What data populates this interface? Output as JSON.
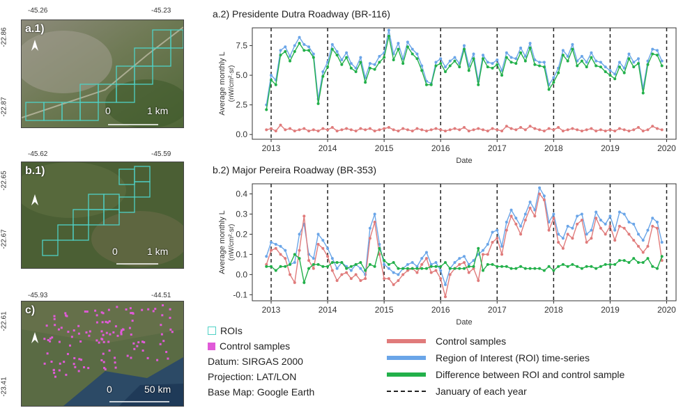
{
  "maps": {
    "a1": {
      "tag": "a.1)",
      "x_ticks": [
        "-45.26",
        "-45.23"
      ],
      "y_ticks": [
        "-22.86",
        "-22.87"
      ],
      "scale_zero": "0",
      "scale_label": "1 km",
      "north": "N"
    },
    "b1": {
      "tag": "b.1)",
      "x_ticks": [
        "-45.62",
        "-45.59"
      ],
      "y_ticks": [
        "-22.65",
        "-22.67"
      ],
      "scale_zero": "0",
      "scale_label": "1 km",
      "north": "N"
    },
    "c": {
      "tag": "c)",
      "x_ticks": [
        "-45.93",
        "-44.51"
      ],
      "y_ticks": [
        "-22.61",
        "-23.41"
      ],
      "scale_zero": "0",
      "scale_label": "50 km",
      "north": "N"
    }
  },
  "map_legend": {
    "roi_label": "ROIs",
    "control_label": "Control samples",
    "datum": "Datum: SIRGAS 2000",
    "projection": "Projection: LAT/LON",
    "basemap": "Base Map: Google Earth",
    "roi_color": "#4fd1c5",
    "control_color": "#e05ad8"
  },
  "series_legend": {
    "control": "Control samples",
    "roi": "Region of Interest (ROI) time-series",
    "difference": "Difference between ROI and control sample",
    "january": "January of each year"
  },
  "colors": {
    "control": "#e07b7b",
    "roi": "#6aa5e8",
    "difference": "#22b04a"
  },
  "chart_data": [
    {
      "type": "line",
      "title": "a.2) Presidente Dutra Roadway (BR-116)",
      "xlabel": "Date",
      "ylabel": "Average monthly L",
      "ylabel_unit": "(nW/cm²·sr)",
      "x_ticks": [
        "2013",
        "2014",
        "2015",
        "2016",
        "2017",
        "2018",
        "2019",
        "2020"
      ],
      "y_ticks": [
        "0.0",
        "2.5",
        "5.0",
        "7.5"
      ],
      "ylim": [
        -0.4,
        9.0
      ],
      "xlim": [
        "2012-09",
        "2020-03"
      ],
      "start": "2012-12",
      "january_lines": [
        "2013-01",
        "2014-01",
        "2015-01",
        "2016-01",
        "2017-01",
        "2018-01",
        "2019-01",
        "2020-01"
      ],
      "series": [
        {
          "name": "Region of Interest (ROI) time-series",
          "key": "roi",
          "values": [
            2.5,
            5.0,
            4.6,
            7.1,
            7.4,
            6.6,
            7.5,
            8.2,
            7.6,
            7.4,
            6.8,
            3.0,
            5.3,
            6.1,
            7.6,
            7.0,
            6.3,
            6.9,
            6.0,
            5.6,
            6.5,
            4.8,
            6.0,
            5.9,
            6.6,
            6.9,
            8.8,
            6.8,
            7.7,
            6.4,
            7.8,
            7.2,
            6.8,
            5.8,
            4.5,
            4.3,
            6.1,
            6.4,
            5.7,
            6.2,
            6.5,
            6.0,
            7.5,
            5.8,
            6.8,
            4.5,
            6.7,
            6.1,
            6.0,
            6.3,
            5.4,
            6.9,
            6.5,
            6.4,
            7.3,
            6.6,
            7.7,
            6.3,
            6.1,
            6.1,
            4.2,
            4.8,
            5.6,
            7.1,
            6.6,
            7.6,
            6.2,
            6.6,
            6.1,
            6.9,
            6.2,
            6.1,
            5.7,
            5.4,
            5.1,
            6.1,
            5.6,
            6.8,
            6.1,
            6.4,
            3.9,
            6.2,
            7.2,
            7.1,
            6.2
          ]
        },
        {
          "name": "Difference between ROI and control sample",
          "key": "difference",
          "values": [
            2.1,
            4.6,
            4.2,
            6.7,
            7.0,
            6.2,
            7.0,
            7.7,
            7.1,
            7.1,
            6.5,
            2.6,
            4.9,
            5.7,
            7.2,
            6.7,
            5.9,
            6.5,
            5.6,
            5.3,
            6.1,
            4.4,
            5.6,
            5.5,
            6.1,
            6.5,
            8.3,
            6.3,
            7.2,
            6.0,
            7.4,
            6.8,
            6.4,
            5.4,
            4.2,
            4.2,
            5.8,
            6.0,
            5.3,
            5.8,
            6.2,
            5.7,
            7.2,
            5.4,
            6.4,
            4.2,
            6.4,
            5.7,
            5.6,
            5.9,
            5.0,
            6.5,
            6.1,
            6.0,
            6.9,
            6.2,
            7.3,
            5.9,
            5.8,
            5.7,
            3.8,
            4.4,
            5.2,
            6.7,
            6.2,
            7.2,
            5.8,
            6.2,
            5.7,
            6.5,
            5.8,
            5.7,
            5.3,
            5.0,
            4.7,
            5.7,
            5.2,
            6.4,
            5.7,
            6.0,
            3.5,
            5.9,
            6.8,
            6.7,
            5.8
          ]
        },
        {
          "name": "Control samples",
          "key": "control",
          "values": [
            0.4,
            0.5,
            0.3,
            0.8,
            0.4,
            0.5,
            0.3,
            0.4,
            0.5,
            0.3,
            0.4,
            0.3,
            0.5,
            0.4,
            0.6,
            0.3,
            0.4,
            0.5,
            0.4,
            0.3,
            0.5,
            0.4,
            0.5,
            0.3,
            0.4,
            0.5,
            0.6,
            0.4,
            0.3,
            0.5,
            0.4,
            0.3,
            0.5,
            0.4,
            0.3,
            0.4,
            0.5,
            0.4,
            0.3,
            0.4,
            0.5,
            0.4,
            0.6,
            0.3,
            0.4,
            0.5,
            0.4,
            0.3,
            0.5,
            0.4,
            0.3,
            0.7,
            0.5,
            0.4,
            0.6,
            0.4,
            0.7,
            0.5,
            0.4,
            0.3,
            0.5,
            0.4,
            0.6,
            0.3,
            0.4,
            0.5,
            0.4,
            0.3,
            0.4,
            0.5,
            0.3,
            0.4,
            0.3,
            0.4,
            0.3,
            0.5,
            0.4,
            0.3,
            0.4,
            0.6,
            0.3,
            0.4,
            0.7,
            0.5,
            0.4
          ]
        }
      ]
    },
    {
      "type": "line",
      "title": "b.2) Major Pereira Roadway (BR-353)",
      "xlabel": "Date",
      "ylabel": "Average monthly L",
      "ylabel_unit": "(nW/cm²·sr)",
      "x_ticks": [
        "2013",
        "2014",
        "2015",
        "2016",
        "2017",
        "2018",
        "2019",
        "2020"
      ],
      "y_ticks": [
        "-0.1",
        "0.0",
        "0.1",
        "0.2",
        "0.3",
        "0.4"
      ],
      "ylim": [
        -0.13,
        0.45
      ],
      "xlim": [
        "2012-09",
        "2020-03"
      ],
      "start": "2012-12",
      "january_lines": [
        "2013-01",
        "2014-01",
        "2015-01",
        "2016-01",
        "2017-01",
        "2018-01",
        "2019-01",
        "2020-01"
      ],
      "series": [
        {
          "name": "Region of Interest (ROI) time-series",
          "key": "roi",
          "values": [
            0.09,
            0.16,
            0.15,
            0.14,
            0.12,
            0.05,
            0.06,
            0.2,
            0.25,
            0.1,
            0.08,
            0.2,
            0.17,
            0.13,
            0.08,
            0.03,
            0.06,
            0.04,
            0.02,
            0.05,
            0.03,
            0.0,
            0.23,
            0.3,
            0.15,
            0.05,
            0.03,
            0.01,
            0.0,
            0.03,
            0.05,
            0.06,
            0.04,
            0.08,
            0.11,
            0.05,
            0.06,
            0.02,
            -0.05,
            0.03,
            0.06,
            0.08,
            0.09,
            0.05,
            0.07,
            0.1,
            0.12,
            0.15,
            0.21,
            0.22,
            0.14,
            0.26,
            0.32,
            0.28,
            0.24,
            0.3,
            0.36,
            0.32,
            0.43,
            0.39,
            0.26,
            0.3,
            0.2,
            0.18,
            0.24,
            0.23,
            0.29,
            0.3,
            0.2,
            0.22,
            0.31,
            0.27,
            0.25,
            0.29,
            0.22,
            0.31,
            0.3,
            0.26,
            0.25,
            0.2,
            0.17,
            0.22,
            0.28,
            0.26,
            0.16
          ]
        },
        {
          "name": "Control samples",
          "key": "control",
          "values": [
            0.05,
            0.12,
            0.13,
            0.1,
            0.08,
            0.0,
            -0.04,
            0.12,
            0.29,
            0.07,
            0.03,
            0.15,
            0.13,
            0.09,
            0.02,
            -0.03,
            0.0,
            0.01,
            -0.02,
            0.0,
            -0.03,
            -0.02,
            0.18,
            0.26,
            0.1,
            -0.02,
            -0.02,
            -0.05,
            -0.03,
            0.0,
            0.02,
            0.03,
            0.01,
            0.05,
            0.08,
            0.01,
            0.02,
            -0.02,
            -0.11,
            0.0,
            0.03,
            0.05,
            0.06,
            0.01,
            0.03,
            -0.03,
            0.1,
            0.1,
            0.16,
            0.18,
            0.1,
            0.22,
            0.29,
            0.25,
            0.2,
            0.27,
            0.33,
            0.29,
            0.4,
            0.37,
            0.22,
            0.28,
            0.16,
            0.13,
            0.2,
            0.18,
            0.25,
            0.27,
            0.16,
            0.18,
            0.28,
            0.23,
            0.2,
            0.24,
            0.17,
            0.24,
            0.23,
            0.2,
            0.17,
            0.14,
            0.11,
            0.14,
            0.24,
            0.23,
            0.07
          ]
        },
        {
          "name": "Difference between ROI and control sample",
          "key": "difference",
          "values": [
            0.04,
            0.04,
            0.02,
            0.04,
            0.04,
            0.05,
            0.1,
            0.08,
            -0.04,
            0.03,
            0.05,
            0.05,
            0.04,
            0.04,
            0.06,
            0.06,
            0.06,
            0.03,
            0.04,
            0.05,
            0.06,
            0.02,
            0.05,
            0.04,
            0.13,
            0.07,
            0.05,
            0.06,
            0.03,
            0.03,
            0.03,
            0.03,
            0.03,
            0.03,
            0.03,
            0.04,
            0.04,
            0.04,
            0.06,
            0.03,
            0.03,
            0.03,
            0.03,
            0.04,
            0.04,
            0.13,
            0.02,
            0.05,
            0.05,
            0.04,
            0.04,
            0.04,
            0.03,
            0.03,
            0.04,
            0.03,
            0.03,
            0.03,
            0.03,
            0.02,
            0.04,
            0.02,
            0.04,
            0.05,
            0.04,
            0.05,
            0.04,
            0.03,
            0.04,
            0.04,
            0.03,
            0.04,
            0.05,
            0.05,
            0.05,
            0.07,
            0.07,
            0.06,
            0.08,
            0.06,
            0.06,
            0.08,
            0.04,
            0.03,
            0.09
          ]
        }
      ]
    }
  ]
}
